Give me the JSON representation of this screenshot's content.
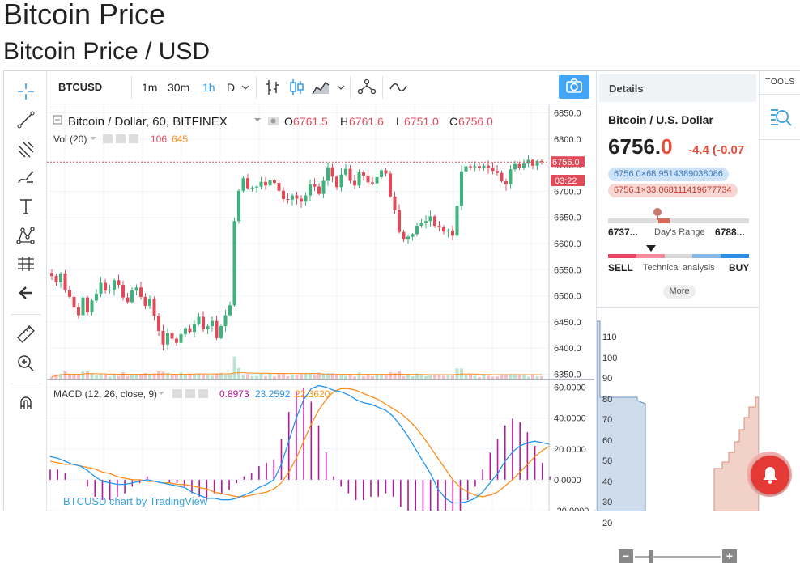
{
  "page": {
    "title": "Bitcoin Price",
    "subtitle": "Bitcoin Price / USD"
  },
  "toolbar": {
    "symbol": "BTCUSD",
    "intervals": [
      "1m",
      "30m",
      "1h",
      "D"
    ],
    "active_interval": "1h"
  },
  "legend": {
    "series_title": "Bitcoin / Dollar, 60, BITFINEX",
    "o_label": "O",
    "o_value": "6761.5",
    "h_label": "H",
    "h_value": "6761.6",
    "l_label": "L",
    "l_value": "6751.0",
    "c_label": "C",
    "c_value": "6756.0",
    "vol_title": "Vol (20)",
    "vol_value1": "106",
    "vol_value2": "645",
    "macd_title": "MACD (12, 26, close, 9)",
    "macd_hist": "0.8973",
    "macd_line": "23.2592",
    "macd_signal": "22.3620"
  },
  "price_badge": {
    "price": "6756.0",
    "countdown": "03:22"
  },
  "colors": {
    "up": "#3cb37a",
    "down": "#e04b5a",
    "macd_line": "#2196f3",
    "signal_line": "#ff8c1a",
    "hist": "#b5179e",
    "accent": "#2196f3"
  },
  "chart_data": [
    {
      "type": "candlestick",
      "title": "Bitcoin / Dollar, 60, BITFINEX",
      "ylim": [
        6340,
        6860
      ],
      "yticks": [
        6350.0,
        6400.0,
        6450.0,
        6500.0,
        6550.0,
        6600.0,
        6650.0,
        6700.0,
        6750.0,
        6800.0,
        6850.0
      ],
      "close": [
        6538,
        6526,
        6543,
        6511,
        6498,
        6478,
        6463,
        6497,
        6469,
        6491,
        6504,
        6525,
        6510,
        6512,
        6530,
        6521,
        6497,
        6488,
        6510,
        6516,
        6498,
        6481,
        6494,
        6462,
        6433,
        6407,
        6429,
        6418,
        6410,
        6427,
        6438,
        6431,
        6446,
        6460,
        6436,
        6442,
        6452,
        6419,
        6442,
        6463,
        6482,
        6643,
        6701,
        6725,
        6706,
        6707,
        6709,
        6718,
        6711,
        6721,
        6716,
        6701,
        6685,
        6684,
        6692,
        6686,
        6680,
        6692,
        6713,
        6709,
        6695,
        6720,
        6746,
        6728,
        6708,
        6732,
        6743,
        6720,
        6711,
        6736,
        6730,
        6717,
        6715,
        6727,
        6740,
        6734,
        6690,
        6664,
        6622,
        6609,
        6613,
        6618,
        6634,
        6640,
        6643,
        6652,
        6634,
        6631,
        6623,
        6625,
        6615,
        6672,
        6738,
        6748,
        6746,
        6748,
        6745,
        6749,
        6745,
        6739,
        6735,
        6719,
        6713,
        6742,
        6752,
        6745,
        6753,
        6760,
        6749,
        6758,
        6756
      ],
      "volume_ylim": [
        0,
        700
      ],
      "volume_note": "per-bar volume bars drawn with up/down tint"
    },
    {
      "type": "line",
      "title": "MACD (12, 26, close, 9)",
      "ylim": [
        -20,
        65
      ],
      "yticks": [
        -20.0,
        0.0,
        20.0,
        40.0,
        60.0
      ],
      "series": [
        {
          "name": "MACD",
          "values": [
            15,
            14,
            12,
            10,
            9,
            6,
            2,
            -1,
            -2,
            -3,
            -3,
            -2,
            -1,
            0,
            -1,
            -2,
            -3,
            -4,
            -5,
            -8,
            -10,
            -12,
            -12,
            -13,
            -13,
            -12,
            -10,
            -8,
            -5,
            -3,
            0,
            10,
            25,
            40,
            52,
            59,
            61,
            60,
            58,
            57,
            55,
            52,
            50,
            49,
            47,
            45,
            41,
            35,
            28,
            20,
            12,
            4,
            -6,
            -12,
            -15,
            -15,
            -14,
            -12,
            -8,
            -2,
            4,
            12,
            18,
            22,
            24,
            25,
            24,
            23
          ]
        },
        {
          "name": "Signal",
          "values": [
            12,
            11,
            10,
            10,
            9,
            8,
            7,
            5,
            4,
            2,
            1,
            0,
            0,
            -1,
            -1,
            -2,
            -2,
            -3,
            -3,
            -4,
            -5,
            -6,
            -8,
            -9,
            -10,
            -11,
            -11,
            -10,
            -9,
            -8,
            -6,
            -2,
            5,
            14,
            25,
            36,
            45,
            52,
            57,
            59,
            59,
            58,
            56,
            54,
            52,
            49,
            46,
            43,
            39,
            34,
            28,
            21,
            14,
            7,
            0,
            -5,
            -8,
            -10,
            -11,
            -10,
            -8,
            -4,
            0,
            5,
            10,
            15,
            19,
            22
          ]
        }
      ]
    }
  ],
  "details": {
    "header": "Details",
    "name": "Bitcoin / U.S. Dollar",
    "price_main": "6756.",
    "price_last": "0",
    "change": "-4.4 (-0.07",
    "bid": "6756.0×68.9514389038086",
    "ask": "6756.1×33.068111419677734",
    "range_low": "6737...",
    "range_label": "Day's Range",
    "range_high": "6788...",
    "sell": "SELL",
    "ta_label": "Technical analysis",
    "buy": "BUY",
    "more": "More",
    "depth_ticks": [
      "110",
      "100",
      "90",
      "80",
      "70",
      "60",
      "50",
      "40",
      "30",
      "20"
    ]
  },
  "tools": {
    "header": "TOOLS"
  },
  "credit": "BTCUSD chart by TradingView"
}
